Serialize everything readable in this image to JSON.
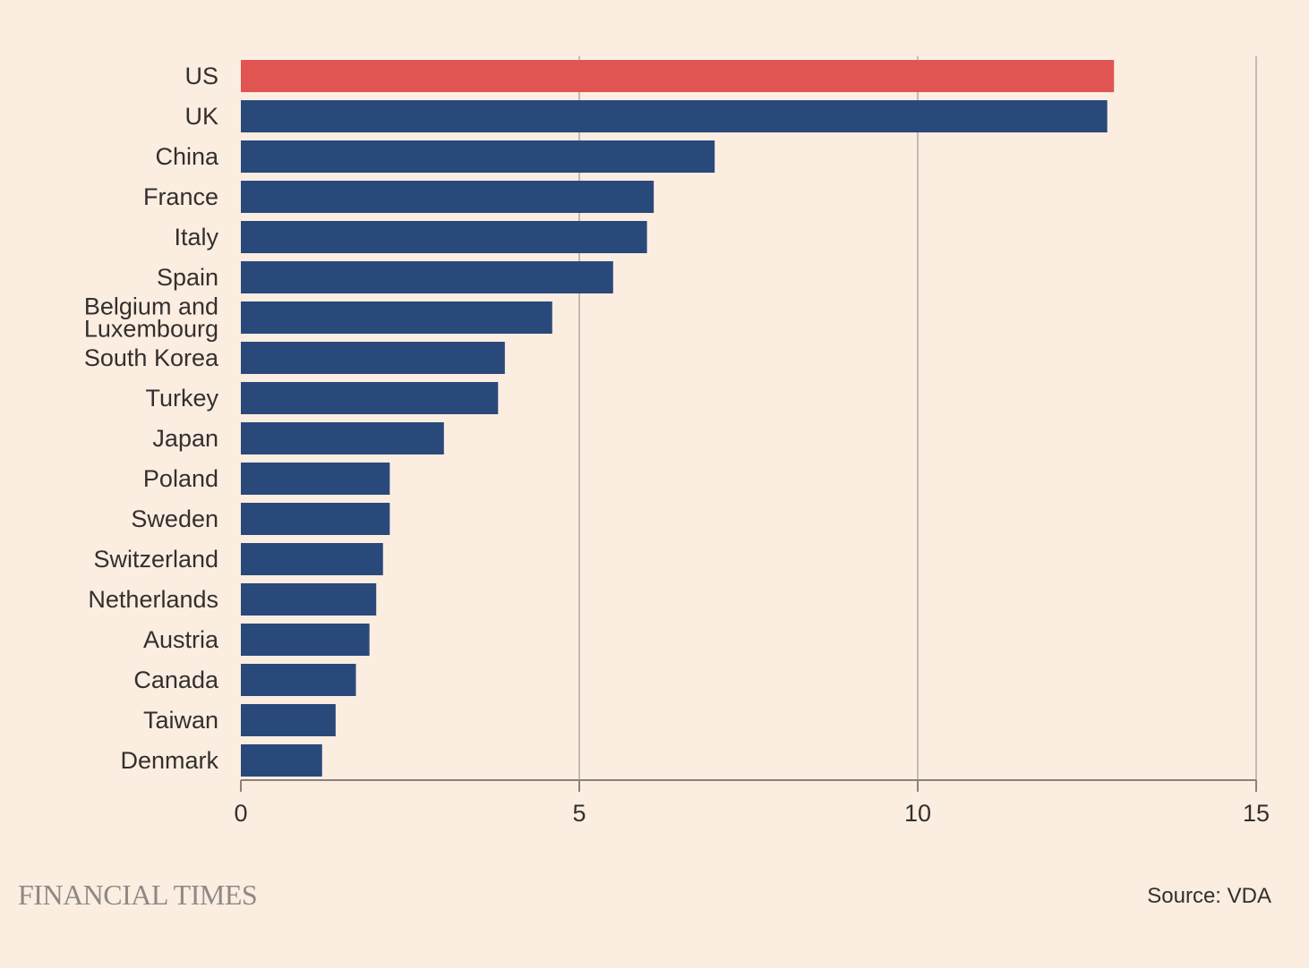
{
  "footer": {
    "brand": "FINANCIAL TIMES",
    "source": "Source: VDA"
  },
  "colors": {
    "background": "#fcede1",
    "highlight_bar": "#e05552",
    "bar": "#29497b",
    "text": "#33302e",
    "grid": "#b7ada5"
  },
  "chart_data": {
    "type": "bar",
    "orientation": "horizontal",
    "title": "",
    "xlabel": "",
    "ylabel": "",
    "xlim": [
      0,
      15
    ],
    "xticks": [
      0,
      5,
      10,
      15
    ],
    "grid": true,
    "categories": [
      "US",
      "UK",
      "China",
      "France",
      "Italy",
      "Spain",
      "Belgium and Luxembourg",
      "South Korea",
      "Turkey",
      "Japan",
      "Poland",
      "Sweden",
      "Switzerland",
      "Netherlands",
      "Austria",
      "Canada",
      "Taiwan",
      "Denmark"
    ],
    "category_label_lines": [
      [
        "US"
      ],
      [
        "UK"
      ],
      [
        "China"
      ],
      [
        "France"
      ],
      [
        "Italy"
      ],
      [
        "Spain"
      ],
      [
        "Belgium and",
        "Luxembourg"
      ],
      [
        "South Korea"
      ],
      [
        "Turkey"
      ],
      [
        "Japan"
      ],
      [
        "Poland"
      ],
      [
        "Sweden"
      ],
      [
        "Switzerland"
      ],
      [
        "Netherlands"
      ],
      [
        "Austria"
      ],
      [
        "Canada"
      ],
      [
        "Taiwan"
      ],
      [
        "Denmark"
      ]
    ],
    "values": [
      12.9,
      12.8,
      7.0,
      6.1,
      6.0,
      5.5,
      4.6,
      3.9,
      3.8,
      3.0,
      2.2,
      2.2,
      2.1,
      2.0,
      1.9,
      1.7,
      1.4,
      1.2
    ],
    "highlight": [
      "US"
    ]
  }
}
